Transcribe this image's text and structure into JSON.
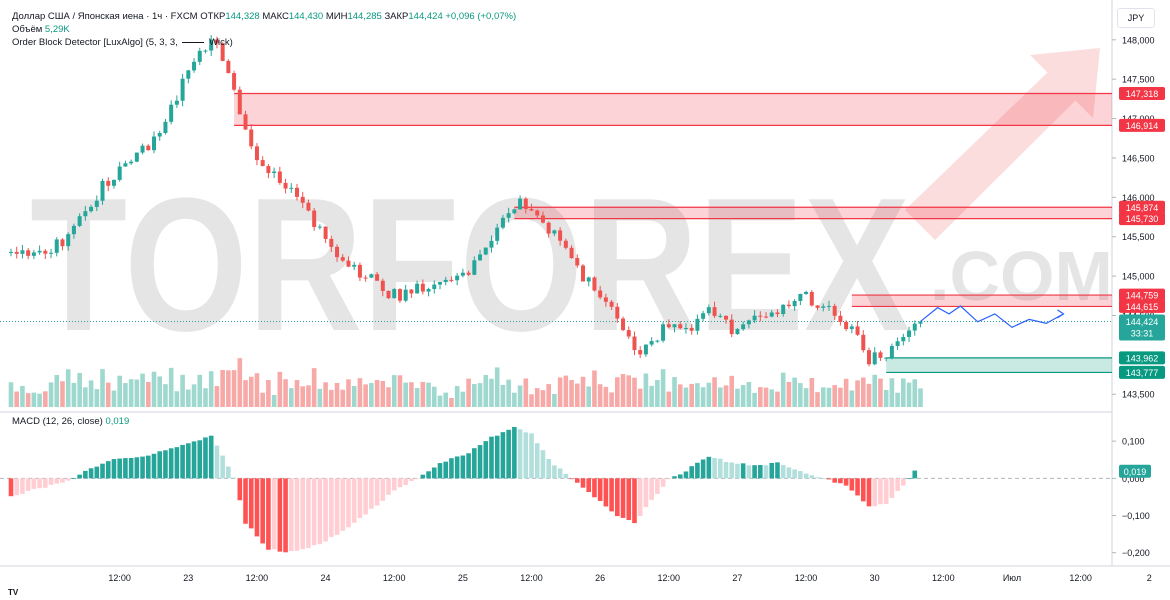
{
  "header": {
    "symbol_line": "Доллар США / Японская иена · 1ч · FXCM",
    "open_label": "ОТКР",
    "open_value": "144,328",
    "high_label": "МАКС",
    "high_value": "144,430",
    "low_label": "МИН",
    "low_value": "144,285",
    "close_label": "ЗАКР",
    "close_value": "144,424",
    "change": "+0,096 (+0,07%)",
    "volume_label": "Объём",
    "volume_value": "5,29K",
    "indicator_name": "Order Block Detector [LuxAlgo] (5, 3, 3,",
    "indicator_tail": "Wick)",
    "macd_label": "MACD (12, 26, close)",
    "macd_value": "0,019",
    "currency": "JPY",
    "watermark": "TORFOREX",
    "watermark_sub": ".COM",
    "footer": "TV"
  },
  "colors": {
    "up": "#26a69a",
    "down": "#ef5350",
    "vol_up": "#9fd8cf",
    "vol_down": "#f7a9a7",
    "macd_up_strong": "#26a69a",
    "macd_up_weak": "#b2dfdb",
    "macd_down_strong": "#ff5252",
    "macd_down_weak": "#ffcdd2",
    "ob_bear_fill": "rgba(242,54,69,0.22)",
    "ob_bear_line": "#f23645",
    "ob_bull_fill": "rgba(8,153,129,0.22)",
    "ob_bull_line": "#089981",
    "forecast": "#2962ff",
    "watermark": "#e5e5e5",
    "watermark_accent": "#fbdddd"
  },
  "chart_data": {
    "type": "candlestick",
    "price_axis": {
      "min": 143.3,
      "max": 148.15,
      "ticks": [
        "148,000",
        "147,500",
        "147,000",
        "146,500",
        "146,000",
        "145,500",
        "145,000",
        "144,500",
        "143,500"
      ],
      "tick_values": [
        148.0,
        147.5,
        147.0,
        146.5,
        146.0,
        145.5,
        145.0,
        144.5,
        143.5
      ]
    },
    "macd_axis": {
      "min": -0.225,
      "max": 0.13,
      "ticks": [
        "0,100",
        "0,000",
        "−0,100",
        "−0,200"
      ],
      "tick_values": [
        0.1,
        0.0,
        -0.1,
        -0.2
      ]
    },
    "time_axis": {
      "labels": [
        "12:00",
        "23",
        "12:00",
        "24",
        "12:00",
        "25",
        "12:00",
        "26",
        "12:00",
        "27",
        "12:00",
        "30",
        "12:00",
        "Июл",
        "12:00",
        "2"
      ],
      "bar_index": [
        12,
        24,
        36,
        48,
        60,
        72,
        84,
        96,
        108,
        120,
        132,
        144,
        156,
        168,
        180,
        192
      ]
    },
    "price_path": {
      "start": 145.3,
      "keypoints": [
        [
          0,
          145.3
        ],
        [
          6,
          145.35
        ],
        [
          9,
          145.45
        ],
        [
          13,
          145.85
        ],
        [
          18,
          146.3
        ],
        [
          22,
          146.6
        ],
        [
          24,
          146.6
        ],
        [
          29,
          147.3
        ],
        [
          33,
          147.8
        ],
        [
          36,
          148.0
        ],
        [
          38,
          147.6
        ],
        [
          40,
          147.0
        ],
        [
          42,
          146.6
        ],
        [
          45,
          146.3
        ],
        [
          50,
          146.0
        ],
        [
          54,
          145.6
        ],
        [
          58,
          145.2
        ],
        [
          63,
          144.95
        ],
        [
          67,
          144.75
        ],
        [
          70,
          144.8
        ],
        [
          75,
          144.95
        ],
        [
          80,
          145.1
        ],
        [
          84,
          145.5
        ],
        [
          89,
          145.9
        ],
        [
          92,
          145.75
        ],
        [
          96,
          145.45
        ],
        [
          100,
          145.0
        ],
        [
          104,
          144.75
        ],
        [
          108,
          144.15
        ],
        [
          111,
          144.05
        ],
        [
          114,
          144.35
        ],
        [
          118,
          144.3
        ],
        [
          122,
          144.55
        ],
        [
          126,
          144.35
        ],
        [
          130,
          144.5
        ],
        [
          134,
          144.55
        ],
        [
          138,
          144.75
        ],
        [
          142,
          144.65
        ],
        [
          146,
          144.4
        ],
        [
          150,
          143.95
        ],
        [
          153,
          144.0
        ],
        [
          156,
          144.2
        ],
        [
          159,
          144.42
        ]
      ],
      "last_close": 144.424
    },
    "volume_series": "relative volume 0–1 per bar",
    "order_blocks": [
      {
        "kind": "bearish",
        "from_bar": 39,
        "top": 147.318,
        "bottom": 146.914,
        "top_label": "147,318",
        "bottom_label": "146,914"
      },
      {
        "kind": "bearish",
        "from_bar": 88,
        "top": 145.874,
        "bottom": 145.73,
        "top_label": "145,874",
        "bottom_label": "145,730"
      },
      {
        "kind": "bearish",
        "from_bar": 147,
        "top": 144.759,
        "bottom": 144.615,
        "top_label": "144,759",
        "bottom_label": "144,615"
      },
      {
        "kind": "bullish",
        "from_bar": 153,
        "top": 143.962,
        "bottom": 143.777,
        "top_label": "143,962",
        "bottom_label": "143,777"
      }
    ],
    "current_price": {
      "value": 144.424,
      "label": "144,424",
      "countdown": "33:31"
    },
    "forecast_path": [
      [
        159,
        144.424
      ],
      [
        162,
        144.6
      ],
      [
        164,
        144.52
      ],
      [
        166,
        144.62
      ],
      [
        169,
        144.42
      ],
      [
        172,
        144.52
      ],
      [
        175,
        144.35
      ],
      [
        178,
        144.45
      ],
      [
        181,
        144.4
      ],
      [
        184,
        144.52
      ]
    ],
    "macd_keypoints": [
      [
        0,
        -0.05
      ],
      [
        3,
        -0.035
      ],
      [
        9,
        -0.012
      ],
      [
        13,
        0.02
      ],
      [
        18,
        0.05
      ],
      [
        24,
        0.06
      ],
      [
        30,
        0.09
      ],
      [
        35,
        0.115
      ],
      [
        37,
        0.06
      ],
      [
        39,
        0.0
      ],
      [
        41,
        -0.12
      ],
      [
        45,
        -0.19
      ],
      [
        48,
        -0.2
      ],
      [
        52,
        -0.19
      ],
      [
        56,
        -0.16
      ],
      [
        60,
        -0.12
      ],
      [
        64,
        -0.07
      ],
      [
        67,
        -0.035
      ],
      [
        70,
        -0.01
      ],
      [
        75,
        0.04
      ],
      [
        80,
        0.07
      ],
      [
        84,
        0.11
      ],
      [
        88,
        0.14
      ],
      [
        91,
        0.12
      ],
      [
        94,
        0.05
      ],
      [
        98,
        0.0
      ],
      [
        102,
        -0.05
      ],
      [
        106,
        -0.1
      ],
      [
        109,
        -0.12
      ],
      [
        112,
        -0.06
      ],
      [
        115,
        0.0
      ],
      [
        118,
        0.02
      ],
      [
        122,
        0.06
      ],
      [
        126,
        0.04
      ],
      [
        130,
        0.035
      ],
      [
        134,
        0.04
      ],
      [
        138,
        0.02
      ],
      [
        142,
        0.0
      ],
      [
        146,
        -0.02
      ],
      [
        150,
        -0.075
      ],
      [
        153,
        -0.07
      ],
      [
        156,
        -0.02
      ],
      [
        158,
        0.019
      ]
    ]
  }
}
